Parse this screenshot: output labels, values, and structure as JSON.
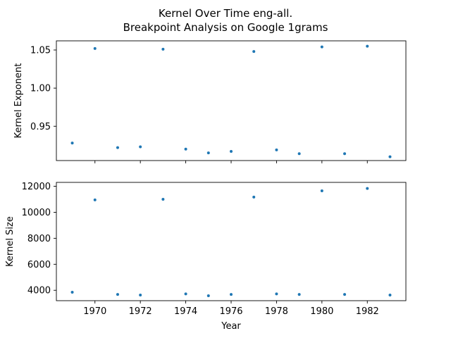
{
  "chart_data": [
    {
      "type": "scatter",
      "title_lines": [
        "Kernel Over Time eng-all.",
        "Breakpoint Analysis on Google 1grams"
      ],
      "xlabel": "",
      "ylabel": "Kernel Exponent",
      "xlim": [
        1968.3,
        1983.7
      ],
      "ylim": [
        0.905,
        1.062
      ],
      "xticks": [
        1970,
        1972,
        1974,
        1976,
        1978,
        1980,
        1982
      ],
      "xtick_labels_visible": false,
      "yticks": [
        0.95,
        1.0,
        1.05
      ],
      "ytick_labels": [
        "0.95",
        "1.00",
        "1.05"
      ],
      "color": "#1f77b4",
      "grid": false,
      "points": [
        {
          "x": 1969,
          "y": 0.928
        },
        {
          "x": 1970,
          "y": 1.052
        },
        {
          "x": 1971,
          "y": 0.922
        },
        {
          "x": 1972,
          "y": 0.923
        },
        {
          "x": 1973,
          "y": 1.051
        },
        {
          "x": 1974,
          "y": 0.92
        },
        {
          "x": 1975,
          "y": 0.915
        },
        {
          "x": 1976,
          "y": 0.917
        },
        {
          "x": 1977,
          "y": 1.048
        },
        {
          "x": 1978,
          "y": 0.919
        },
        {
          "x": 1979,
          "y": 0.914
        },
        {
          "x": 1981,
          "y": 0.914
        },
        {
          "x": 1980,
          "y": 1.054
        },
        {
          "x": 1982,
          "y": 1.055
        },
        {
          "x": 1983,
          "y": 0.91
        }
      ]
    },
    {
      "type": "scatter",
      "xlabel": "Year",
      "ylabel": "Kernel Size",
      "xlim": [
        1968.3,
        1983.7
      ],
      "ylim": [
        3200,
        12300
      ],
      "xticks": [
        1970,
        1972,
        1974,
        1976,
        1978,
        1980,
        1982
      ],
      "xtick_labels": [
        "1970",
        "1972",
        "1974",
        "1976",
        "1978",
        "1980",
        "1982"
      ],
      "yticks": [
        4000,
        6000,
        8000,
        10000,
        12000
      ],
      "ytick_labels": [
        "4000",
        "6000",
        "8000",
        "10000",
        "12000"
      ],
      "color": "#1f77b4",
      "grid": false,
      "points": [
        {
          "x": 1969,
          "y": 3850
        },
        {
          "x": 1970,
          "y": 10950
        },
        {
          "x": 1971,
          "y": 3680
        },
        {
          "x": 1972,
          "y": 3630
        },
        {
          "x": 1973,
          "y": 11000
        },
        {
          "x": 1974,
          "y": 3720
        },
        {
          "x": 1975,
          "y": 3580
        },
        {
          "x": 1976,
          "y": 3680
        },
        {
          "x": 1977,
          "y": 11170
        },
        {
          "x": 1978,
          "y": 3720
        },
        {
          "x": 1979,
          "y": 3680
        },
        {
          "x": 1980,
          "y": 11650
        },
        {
          "x": 1981,
          "y": 3680
        },
        {
          "x": 1982,
          "y": 11830
        },
        {
          "x": 1983,
          "y": 3630
        }
      ]
    }
  ]
}
